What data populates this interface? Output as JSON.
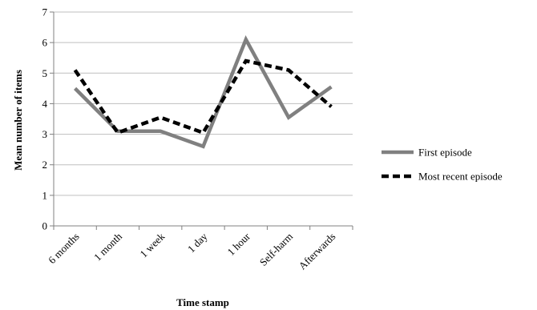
{
  "chart_data": {
    "type": "line",
    "title": "",
    "xlabel": "Time stamp",
    "ylabel": "Mean number of items",
    "ylim": [
      0,
      7
    ],
    "yticks": [
      "0",
      "1",
      "2",
      "3",
      "4",
      "5",
      "6",
      "7"
    ],
    "categories": [
      "6 months",
      "1 month",
      "1 week",
      "1 day",
      "1 hour",
      "Self-harm",
      "Afterwards"
    ],
    "grid": "horizontal",
    "legend": "right",
    "series": [
      {
        "name": "First episode",
        "values": [
          4.5,
          3.1,
          3.1,
          2.6,
          6.1,
          3.55,
          4.55
        ],
        "color": "#808080",
        "style": "solid"
      },
      {
        "name": "Most recent episode",
        "values": [
          5.1,
          3.05,
          3.55,
          3.05,
          5.4,
          5.1,
          3.9
        ],
        "color": "#000000",
        "style": "dashed"
      }
    ]
  }
}
